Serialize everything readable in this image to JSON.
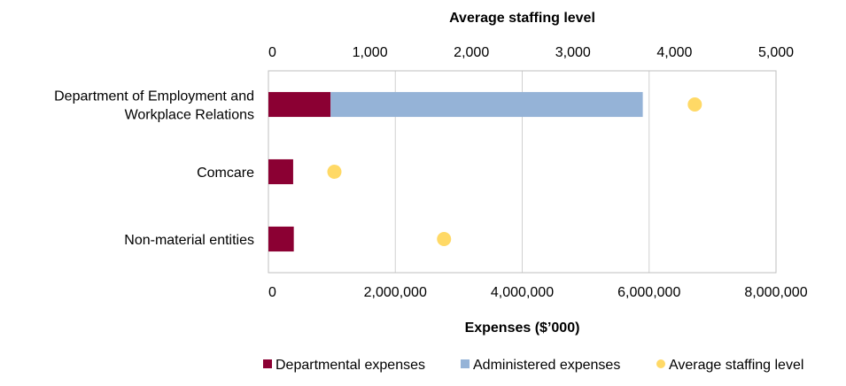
{
  "chart_data": {
    "type": "bar",
    "orientation": "horizontal",
    "stacked": true,
    "categories": [
      [
        "Department of Employment and",
        "Workplace Relations"
      ],
      [
        "Comcare"
      ],
      [
        "Non-material entities"
      ]
    ],
    "series": [
      {
        "name": "Departmental expenses",
        "color": "#8b0033",
        "values": [
          980000,
          390000,
          400000
        ]
      },
      {
        "name": "Administered expenses",
        "color": "#95b3d7",
        "values": [
          4920000,
          0,
          0
        ]
      }
    ],
    "secondary_series": {
      "name": "Average staffing level",
      "type": "scatter",
      "color": "#ffd966",
      "values": [
        4200,
        650,
        1730
      ]
    },
    "x_primary": {
      "title": "Expenses ($’000)",
      "range": [
        0,
        8000000
      ],
      "ticks": [
        0,
        2000000,
        4000000,
        6000000,
        8000000
      ],
      "tick_labels": [
        "0",
        "2,000,000",
        "4,000,000",
        "6,000,000",
        "8,000,000"
      ]
    },
    "x_secondary": {
      "title": "Average staffing level",
      "range": [
        0,
        5000
      ],
      "ticks": [
        0,
        1000,
        2000,
        3000,
        4000,
        5000
      ],
      "tick_labels": [
        "0",
        "1,000",
        "2,000",
        "3,000",
        "4,000",
        "5,000"
      ]
    },
    "grid": true,
    "legend": {
      "position": "bottom",
      "items": [
        "Departmental expenses",
        "Administered expenses",
        "Average staffing level"
      ]
    }
  }
}
